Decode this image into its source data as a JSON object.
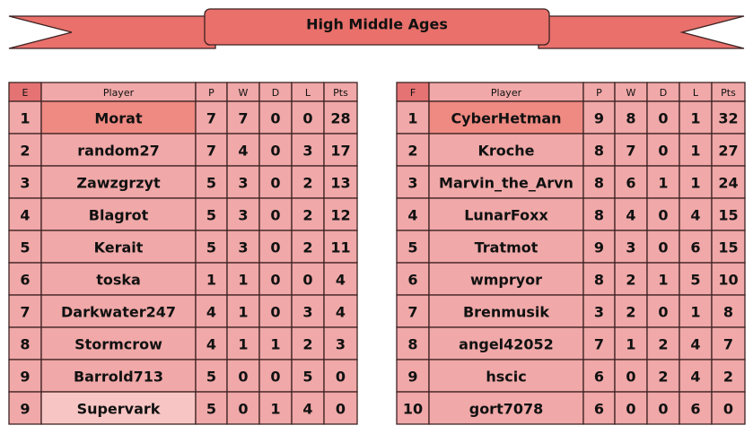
{
  "title": "High Middle Ages",
  "groups": [
    {
      "columns": [
        "E",
        "Player",
        "P",
        "W",
        "D",
        "L",
        "Pts"
      ],
      "rows": [
        [
          "1",
          "Morat",
          "7",
          "7",
          "0",
          "0",
          "28"
        ],
        [
          "2",
          "random27",
          "7",
          "4",
          "0",
          "3",
          "17"
        ],
        [
          "3",
          "Zawzgrzyt",
          "5",
          "3",
          "0",
          "2",
          "13"
        ],
        [
          "4",
          "Blagrot",
          "5",
          "3",
          "0",
          "2",
          "12"
        ],
        [
          "5",
          "Kerait",
          "5",
          "3",
          "0",
          "2",
          "11"
        ],
        [
          "6",
          "toska",
          "1",
          "1",
          "0",
          "0",
          "4"
        ],
        [
          "7",
          "Darkwater247",
          "4",
          "1",
          "0",
          "3",
          "4"
        ],
        [
          "8",
          "Stormcrow",
          "4",
          "1",
          "1",
          "2",
          "3"
        ],
        [
          "9",
          "Barrold713",
          "5",
          "0",
          "0",
          "5",
          "0"
        ],
        [
          "9",
          "Supervark",
          "5",
          "0",
          "1",
          "4",
          "0"
        ]
      ]
    },
    {
      "columns": [
        "F",
        "Player",
        "P",
        "W",
        "D",
        "L",
        "Pts"
      ],
      "rows": [
        [
          "1",
          "CyberHetman",
          "9",
          "8",
          "0",
          "1",
          "32"
        ],
        [
          "2",
          "Kroche",
          "8",
          "7",
          "0",
          "1",
          "27"
        ],
        [
          "3",
          "Marvin_the_Arvn",
          "8",
          "6",
          "1",
          "1",
          "24"
        ],
        [
          "4",
          "LunarFoxx",
          "8",
          "4",
          "0",
          "4",
          "15"
        ],
        [
          "5",
          "Tratmot",
          "9",
          "3",
          "0",
          "6",
          "15"
        ],
        [
          "6",
          "wmpryor",
          "8",
          "2",
          "1",
          "5",
          "10"
        ],
        [
          "7",
          "Brenmusik",
          "3",
          "2",
          "0",
          "1",
          "8"
        ],
        [
          "8",
          "angel42052",
          "7",
          "1",
          "2",
          "4",
          "7"
        ],
        [
          "9",
          "hscic",
          "6",
          "0",
          "2",
          "4",
          "2"
        ],
        [
          "10",
          "gort7078",
          "6",
          "0",
          "0",
          "6",
          "0"
        ]
      ]
    }
  ]
}
